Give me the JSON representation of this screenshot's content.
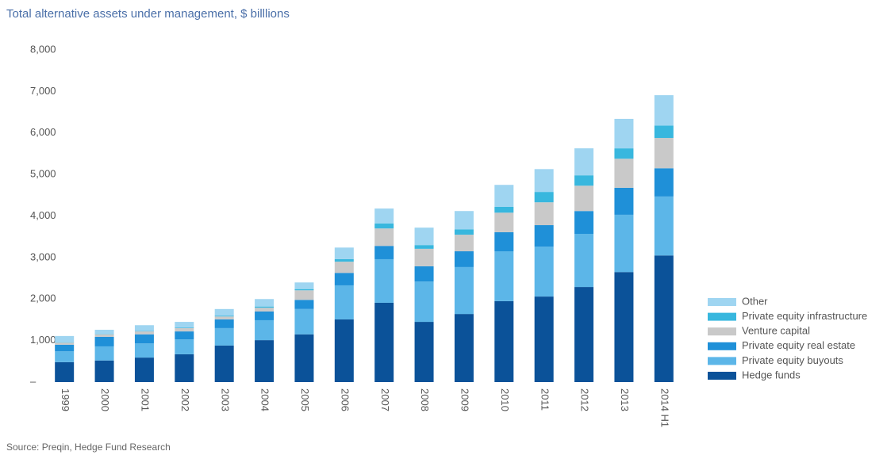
{
  "chart_data": {
    "type": "stacked_bar",
    "title": "Total alternative assets under management, $ billlions",
    "source": "Source: Preqin, Hedge Fund Research",
    "categories": [
      "1999",
      "2000",
      "2001",
      "2002",
      "2003",
      "2004",
      "2005",
      "2006",
      "2007",
      "2008",
      "2009",
      "2010",
      "2011",
      "2012",
      "2013",
      "2014 H1"
    ],
    "series": [
      {
        "name": "Hedge funds",
        "color": "#0b5299",
        "values": [
          480,
          520,
          590,
          670,
          880,
          1010,
          1150,
          1510,
          1910,
          1450,
          1640,
          1950,
          2060,
          2290,
          2650,
          3050
        ]
      },
      {
        "name": "Private equity buyouts",
        "color": "#5cb6e8",
        "values": [
          260,
          340,
          340,
          360,
          420,
          480,
          610,
          820,
          1050,
          970,
          1130,
          1200,
          1200,
          1280,
          1380,
          1420
        ]
      },
      {
        "name": "Private equity real estate",
        "color": "#1f90d8",
        "values": [
          160,
          230,
          220,
          190,
          210,
          210,
          220,
          300,
          320,
          370,
          380,
          460,
          520,
          550,
          650,
          680
        ]
      },
      {
        "name": "Venture capital",
        "color": "#c9c9c9",
        "values": [
          50,
          60,
          70,
          80,
          70,
          90,
          230,
          270,
          420,
          420,
          400,
          470,
          550,
          610,
          700,
          730
        ]
      },
      {
        "name": "Private equity infrastructure",
        "color": "#38b7de",
        "values": [
          10,
          10,
          10,
          15,
          20,
          30,
          30,
          60,
          120,
          90,
          130,
          140,
          250,
          250,
          250,
          300
        ]
      },
      {
        "name": "Other",
        "color": "#9fd5f1",
        "values": [
          150,
          100,
          140,
          135,
          160,
          180,
          160,
          280,
          360,
          420,
          440,
          530,
          550,
          650,
          710,
          730
        ]
      }
    ],
    "ylim": [
      0,
      8000
    ],
    "yticks": [
      {
        "value": 0,
        "label": "–"
      },
      {
        "value": 1000,
        "label": "1,000"
      },
      {
        "value": 2000,
        "label": "2,000"
      },
      {
        "value": 3000,
        "label": "3,000"
      },
      {
        "value": 4000,
        "label": "4,000"
      },
      {
        "value": 5000,
        "label": "5,000"
      },
      {
        "value": 6000,
        "label": "6,000"
      },
      {
        "value": 7000,
        "label": "7,000"
      },
      {
        "value": 8000,
        "label": "8,000"
      }
    ],
    "legend": "right"
  }
}
